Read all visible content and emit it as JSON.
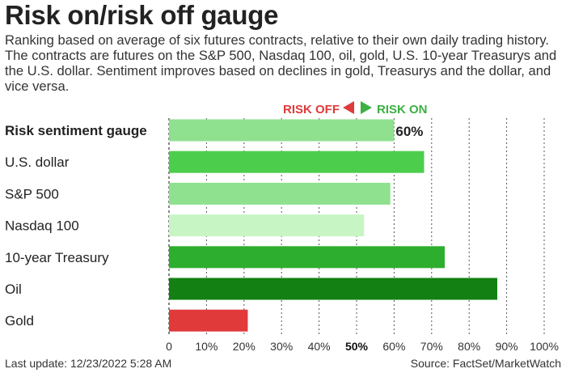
{
  "title": "Risk on/risk off gauge",
  "subtitle": "Ranking based on average of six futures contracts, relative to their own daily trading history. The contracts are futures on the S&P 500, Nasdaq 100, oil, gold, U.S. 10-year Treasurys and the U.S. dollar. Sentiment improves based on declines in gold, Treasurys and the dollar, and vice versa.",
  "legend": {
    "risk_off": "RISK OFF",
    "risk_on": "RISK ON"
  },
  "footer": {
    "last_update": "Last update: 12/23/2022 5:28 AM",
    "source": "Source: FactSet/MarketWatch"
  },
  "colors": {
    "light_green": "#8fe08f",
    "green": "#4cce4c",
    "pale_green": "#c8f5c4",
    "mid_green": "#2eae2e",
    "dark_green": "#128012",
    "red": "#e03a3a"
  },
  "chart_data": {
    "type": "bar",
    "orientation": "horizontal",
    "categories": [
      "Risk sentiment gauge",
      "U.S. dollar",
      "S&P 500",
      "Nasdaq 100",
      "10-year Treasury",
      "Oil",
      "Gold"
    ],
    "values": [
      60,
      68,
      59,
      52,
      73.5,
      87.5,
      21
    ],
    "bar_colors": [
      "#8fe08f",
      "#4cce4c",
      "#8fe08f",
      "#c8f5c4",
      "#2eae2e",
      "#128012",
      "#e03a3a"
    ],
    "data_labels": [
      "60%",
      "",
      "",
      "",
      "",
      "",
      ""
    ],
    "bold_categories": [
      "Risk sentiment gauge"
    ],
    "xlim": [
      0,
      100
    ],
    "x_ticks": [
      0,
      10,
      20,
      30,
      40,
      50,
      60,
      70,
      80,
      90,
      100
    ],
    "x_tick_labels": [
      "0",
      "10%",
      "20%",
      "30%",
      "40%",
      "50%",
      "60%",
      "70%",
      "80%",
      "90%",
      "100%"
    ],
    "bold_tick": "50%",
    "grid": "vertical dotted"
  }
}
